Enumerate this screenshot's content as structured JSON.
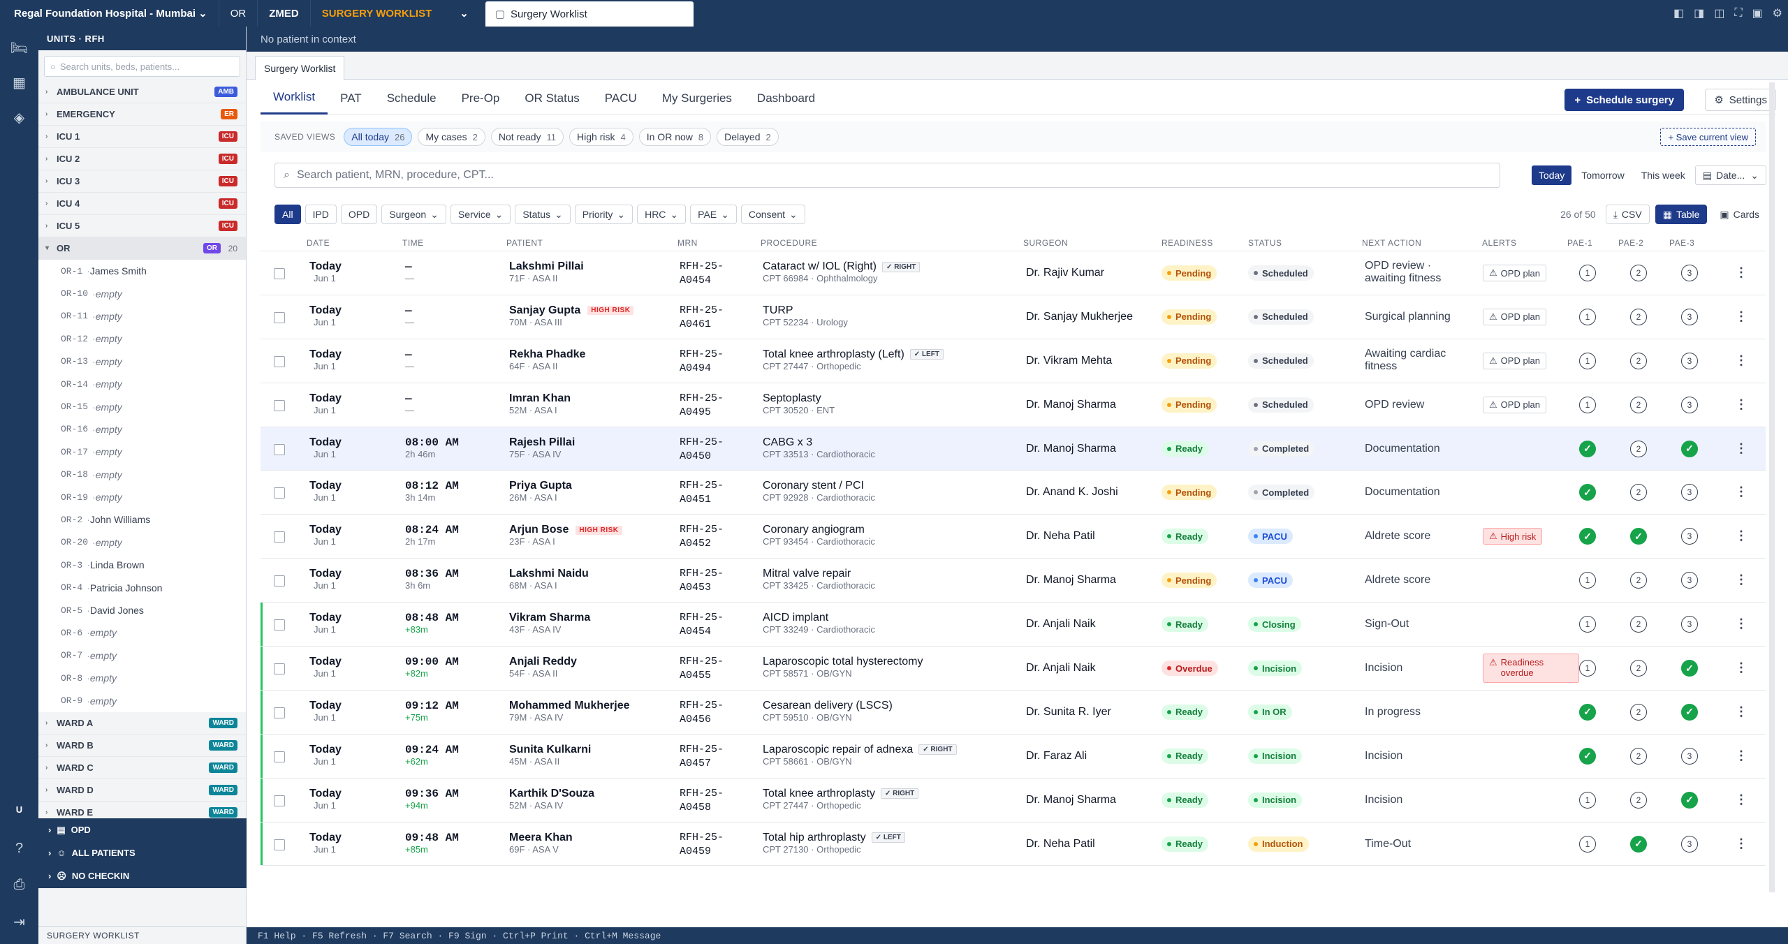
{
  "topbar": {
    "hospital": "Regal Foundation Hospital - Mumbai",
    "or": "OR",
    "zmed": "ZMED",
    "module": "SURGERY WORKLIST",
    "tab": "Surgery Worklist"
  },
  "sidebar": {
    "title": "UNITS · RFH",
    "search_placeholder": "Search units, beds, patients...",
    "units_top": [
      {
        "name": "AMBULANCE UNIT",
        "tag": "AMB",
        "color": "#3b5bdb"
      },
      {
        "name": "EMERGENCY",
        "tag": "ER",
        "color": "#e8590c"
      },
      {
        "name": "ICU 1",
        "tag": "ICU",
        "color": "#c92a2a"
      },
      {
        "name": "ICU 2",
        "tag": "ICU",
        "color": "#c92a2a"
      },
      {
        "name": "ICU 3",
        "tag": "ICU",
        "color": "#c92a2a"
      },
      {
        "name": "ICU 4",
        "tag": "ICU",
        "color": "#c92a2a"
      },
      {
        "name": "ICU 5",
        "tag": "ICU",
        "color": "#c92a2a"
      }
    ],
    "or_unit": {
      "name": "OR",
      "tag": "OR",
      "count": "20",
      "color": "#7048e8"
    },
    "or_rooms": [
      {
        "code": "OR-1",
        "name": "James Smith"
      },
      {
        "code": "OR-10",
        "name": "empty"
      },
      {
        "code": "OR-11",
        "name": "empty"
      },
      {
        "code": "OR-12",
        "name": "empty"
      },
      {
        "code": "OR-13",
        "name": "empty"
      },
      {
        "code": "OR-14",
        "name": "empty"
      },
      {
        "code": "OR-15",
        "name": "empty"
      },
      {
        "code": "OR-16",
        "name": "empty"
      },
      {
        "code": "OR-17",
        "name": "empty"
      },
      {
        "code": "OR-18",
        "name": "empty"
      },
      {
        "code": "OR-19",
        "name": "empty"
      },
      {
        "code": "OR-2",
        "name": "John Williams"
      },
      {
        "code": "OR-20",
        "name": "empty"
      },
      {
        "code": "OR-3",
        "name": "Linda Brown"
      },
      {
        "code": "OR-4",
        "name": "Patricia Johnson"
      },
      {
        "code": "OR-5",
        "name": "David Jones"
      },
      {
        "code": "OR-6",
        "name": "empty"
      },
      {
        "code": "OR-7",
        "name": "empty"
      },
      {
        "code": "OR-8",
        "name": "empty"
      },
      {
        "code": "OR-9",
        "name": "empty"
      }
    ],
    "units_bottom": [
      {
        "name": "WARD A",
        "tag": "WARD",
        "color": "#0c8599"
      },
      {
        "name": "WARD B",
        "tag": "WARD",
        "color": "#0c8599"
      },
      {
        "name": "WARD C",
        "tag": "WARD",
        "color": "#0c8599"
      },
      {
        "name": "WARD D",
        "tag": "WARD",
        "color": "#0c8599"
      },
      {
        "name": "WARD E",
        "tag": "WARD",
        "color": "#0c8599"
      }
    ],
    "groups": [
      "OPD",
      "ALL PATIENTS",
      "NO CHECKIN"
    ],
    "footer": "SURGERY WORKLIST",
    "rail_user": "U"
  },
  "context": {
    "text": "No patient in context",
    "doc_tab": "Surgery Worklist"
  },
  "nav": {
    "tabs": [
      "Worklist",
      "PAT",
      "Schedule",
      "Pre-Op",
      "OR Status",
      "PACU",
      "My Surgeries",
      "Dashboard"
    ],
    "primary_button": "Schedule surgery",
    "settings_button": "Settings"
  },
  "views": {
    "label": "SAVED VIEWS",
    "chips": [
      {
        "label": "All today",
        "count": "26"
      },
      {
        "label": "My cases",
        "count": "2"
      },
      {
        "label": "Not ready",
        "count": "11"
      },
      {
        "label": "High risk",
        "count": "4"
      },
      {
        "label": "In OR now",
        "count": "8"
      },
      {
        "label": "Delayed",
        "count": "2"
      }
    ],
    "save": "+ Save current view"
  },
  "search": {
    "placeholder": "Search patient, MRN, procedure, CPT..."
  },
  "date_filter": [
    "Today",
    "Tomorrow",
    "This week",
    "Date..."
  ],
  "filters": {
    "type": [
      "All",
      "IPD",
      "OPD"
    ],
    "dropdowns": [
      "Surgeon",
      "Service",
      "Status",
      "Priority",
      "HRC",
      "PAE",
      "Consent"
    ],
    "count": "26 of 50",
    "csv": "CSV",
    "table": "Table",
    "cards": "Cards"
  },
  "columns": [
    "DATE",
    "TIME",
    "PATIENT",
    "MRN",
    "PROCEDURE",
    "SURGEON",
    "READINESS",
    "STATUS",
    "NEXT ACTION",
    "ALERTS",
    "PAE-1",
    "PAE-2",
    "PAE-3"
  ],
  "rows": [
    {
      "date": "Today",
      "date_sub": "Jun 1",
      "time": "—",
      "time_sub": "—",
      "patient": "Lakshmi Pillai",
      "risk": "",
      "demo": "71F · ASA II",
      "mrn1": "RFH-25-",
      "mrn2": "A0454",
      "proc": "Cataract w/ IOL (Right)",
      "side": "RIGHT",
      "cpt": "CPT 66984 · Ophthalmology",
      "surgeon": "Dr. Rajiv Kumar",
      "readiness": "Pending",
      "status": "Scheduled",
      "next": "OPD review · awaiting fitness",
      "alert": "OPD plan",
      "pae": [
        "1",
        "2",
        "3"
      ]
    },
    {
      "date": "Today",
      "date_sub": "Jun 1",
      "time": "—",
      "time_sub": "—",
      "patient": "Sanjay Gupta",
      "risk": "HIGH RISK",
      "demo": "70M · ASA III",
      "mrn1": "RFH-25-",
      "mrn2": "A0461",
      "proc": "TURP",
      "side": "",
      "cpt": "CPT 52234 · Urology",
      "surgeon": "Dr. Sanjay Mukherjee",
      "readiness": "Pending",
      "status": "Scheduled",
      "next": "Surgical planning",
      "alert": "OPD plan",
      "pae": [
        "1",
        "2",
        "3"
      ]
    },
    {
      "date": "Today",
      "date_sub": "Jun 1",
      "time": "—",
      "time_sub": "—",
      "patient": "Rekha Phadke",
      "risk": "",
      "demo": "64F · ASA II",
      "mrn1": "RFH-25-",
      "mrn2": "A0494",
      "proc": "Total knee arthroplasty (Left)",
      "side": "LEFT",
      "cpt": "CPT 27447 · Orthopedic",
      "surgeon": "Dr. Vikram Mehta",
      "readiness": "Pending",
      "status": "Scheduled",
      "next": "Awaiting cardiac fitness",
      "alert": "OPD plan",
      "pae": [
        "1",
        "2",
        "3"
      ]
    },
    {
      "date": "Today",
      "date_sub": "Jun 1",
      "time": "—",
      "time_sub": "—",
      "patient": "Imran Khan",
      "risk": "",
      "demo": "52M · ASA I",
      "mrn1": "RFH-25-",
      "mrn2": "A0495",
      "proc": "Septoplasty",
      "side": "",
      "cpt": "CPT 30520 · ENT",
      "surgeon": "Dr. Manoj Sharma",
      "readiness": "Pending",
      "status": "Scheduled",
      "next": "OPD review",
      "alert": "OPD plan",
      "pae": [
        "1",
        "2",
        "3"
      ]
    },
    {
      "date": "Today",
      "date_sub": "Jun 1",
      "time": "08:00 AM",
      "time_sub": "2h 46m",
      "patient": "Rajesh Pillai",
      "risk": "",
      "demo": "75F · ASA IV",
      "mrn1": "RFH-25-",
      "mrn2": "A0450",
      "proc": "CABG x 3",
      "side": "",
      "cpt": "CPT 33513 · Cardiothoracic",
      "surgeon": "Dr. Manoj Sharma",
      "readiness": "Ready",
      "status": "Completed",
      "next": "Documentation",
      "alert": "",
      "pae": [
        "done",
        "2",
        "done"
      ]
    },
    {
      "date": "Today",
      "date_sub": "Jun 1",
      "time": "08:12 AM",
      "time_sub": "3h 14m",
      "patient": "Priya Gupta",
      "risk": "",
      "demo": "26M · ASA I",
      "mrn1": "RFH-25-",
      "mrn2": "A0451",
      "proc": "Coronary stent / PCI",
      "side": "",
      "cpt": "CPT 92928 · Cardiothoracic",
      "surgeon": "Dr. Anand K. Joshi",
      "readiness": "Pending",
      "status": "Completed",
      "next": "Documentation",
      "alert": "",
      "pae": [
        "done",
        "2",
        "3"
      ]
    },
    {
      "date": "Today",
      "date_sub": "Jun 1",
      "time": "08:24 AM",
      "time_sub": "2h 17m",
      "patient": "Arjun Bose",
      "risk": "HIGH RISK",
      "demo": "23F · ASA I",
      "mrn1": "RFH-25-",
      "mrn2": "A0452",
      "proc": "Coronary angiogram",
      "side": "",
      "cpt": "CPT 93454 · Cardiothoracic",
      "surgeon": "Dr. Neha Patil",
      "readiness": "Ready",
      "status": "PACU",
      "next": "Aldrete score",
      "alert": "High risk",
      "pae": [
        "done",
        "done",
        "3"
      ]
    },
    {
      "date": "Today",
      "date_sub": "Jun 1",
      "time": "08:36 AM",
      "time_sub": "3h 6m",
      "patient": "Lakshmi Naidu",
      "risk": "",
      "demo": "68M · ASA I",
      "mrn1": "RFH-25-",
      "mrn2": "A0453",
      "proc": "Mitral valve repair",
      "side": "",
      "cpt": "CPT 33425 · Cardiothoracic",
      "surgeon": "Dr. Manoj Sharma",
      "readiness": "Pending",
      "status": "PACU",
      "next": "Aldrete score",
      "alert": "",
      "pae": [
        "1",
        "2",
        "3"
      ]
    },
    {
      "date": "Today",
      "date_sub": "Jun 1",
      "time": "08:48 AM",
      "time_sub": "+83m",
      "patient": "Vikram Sharma",
      "risk": "",
      "demo": "43F · ASA IV",
      "mrn1": "RFH-25-",
      "mrn2": "A0454",
      "proc": "AICD implant",
      "side": "",
      "cpt": "CPT 33249 · Cardiothoracic",
      "surgeon": "Dr. Anjali Naik",
      "readiness": "Ready",
      "status": "Closing",
      "next": "Sign-Out",
      "alert": "",
      "pae": [
        "1",
        "2",
        "3"
      ]
    },
    {
      "date": "Today",
      "date_sub": "Jun 1",
      "time": "09:00 AM",
      "time_sub": "+82m",
      "patient": "Anjali Reddy",
      "risk": "",
      "demo": "54F · ASA II",
      "mrn1": "RFH-25-",
      "mrn2": "A0455",
      "proc": "Laparoscopic total hysterectomy",
      "side": "",
      "cpt": "CPT 58571 · OB/GYN",
      "surgeon": "Dr. Anjali Naik",
      "readiness": "Overdue",
      "status": "Incision",
      "next": "Incision",
      "alert": "Readiness overdue",
      "pae": [
        "1",
        "2",
        "done"
      ]
    },
    {
      "date": "Today",
      "date_sub": "Jun 1",
      "time": "09:12 AM",
      "time_sub": "+75m",
      "patient": "Mohammed Mukherjee",
      "risk": "",
      "demo": "79M · ASA IV",
      "mrn1": "RFH-25-",
      "mrn2": "A0456",
      "proc": "Cesarean delivery (LSCS)",
      "side": "",
      "cpt": "CPT 59510 · OB/GYN",
      "surgeon": "Dr. Sunita R. Iyer",
      "readiness": "Ready",
      "status": "In OR",
      "next": "In progress",
      "alert": "",
      "pae": [
        "done",
        "2",
        "done"
      ]
    },
    {
      "date": "Today",
      "date_sub": "Jun 1",
      "time": "09:24 AM",
      "time_sub": "+62m",
      "patient": "Sunita Kulkarni",
      "risk": "",
      "demo": "45M · ASA II",
      "mrn1": "RFH-25-",
      "mrn2": "A0457",
      "proc": "Laparoscopic repair of adnexa",
      "side": "RIGHT",
      "cpt": "CPT 58661 · OB/GYN",
      "surgeon": "Dr. Faraz Ali",
      "readiness": "Ready",
      "status": "Incision",
      "next": "Incision",
      "alert": "",
      "pae": [
        "done",
        "2",
        "3"
      ]
    },
    {
      "date": "Today",
      "date_sub": "Jun 1",
      "time": "09:36 AM",
      "time_sub": "+94m",
      "patient": "Karthik D'Souza",
      "risk": "",
      "demo": "52M · ASA IV",
      "mrn1": "RFH-25-",
      "mrn2": "A0458",
      "proc": "Total knee arthroplasty",
      "side": "RIGHT",
      "cpt": "CPT 27447 · Orthopedic",
      "surgeon": "Dr. Manoj Sharma",
      "readiness": "Ready",
      "status": "Incision",
      "next": "Incision",
      "alert": "",
      "pae": [
        "1",
        "2",
        "done"
      ]
    },
    {
      "date": "Today",
      "date_sub": "Jun 1",
      "time": "09:48 AM",
      "time_sub": "+85m",
      "patient": "Meera Khan",
      "risk": "",
      "demo": "69F · ASA V",
      "mrn1": "RFH-25-",
      "mrn2": "A0459",
      "proc": "Total hip arthroplasty",
      "side": "LEFT",
      "cpt": "CPT 27130 · Orthopedic",
      "surgeon": "Dr. Neha Patil",
      "readiness": "Ready",
      "status": "Induction",
      "next": "Time-Out",
      "alert": "",
      "pae": [
        "1",
        "done",
        "3"
      ]
    }
  ],
  "footer": "F1 Help · F5 Refresh · F7 Search · F9 Sign · Ctrl+P Print · Ctrl+M Message"
}
